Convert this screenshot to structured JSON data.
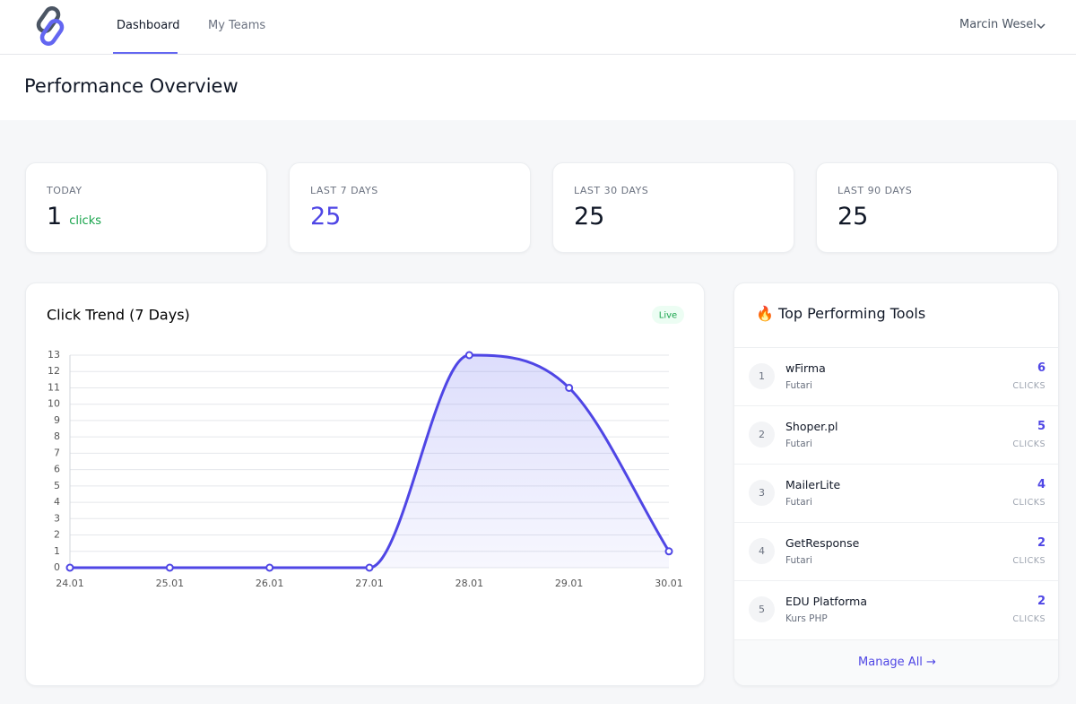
{
  "nav": {
    "items": [
      "Dashboard",
      "My Teams"
    ],
    "user": "Marcin Wesel"
  },
  "header": {
    "title": "Performance Overview"
  },
  "stats": [
    {
      "label": "TODAY",
      "value": "1",
      "unit": "clicks"
    },
    {
      "label": "LAST 7 DAYS",
      "value": "25"
    },
    {
      "label": "LAST 30 DAYS",
      "value": "25"
    },
    {
      "label": "LAST 90 DAYS",
      "value": "25"
    }
  ],
  "chart_data": {
    "type": "line",
    "title": "Click Trend (7 Days)",
    "badge": "Live",
    "categories": [
      "24.01",
      "25.01",
      "26.01",
      "27.01",
      "28.01",
      "29.01",
      "30.01"
    ],
    "series": [
      {
        "color": "#4f46e5",
        "values": [
          0,
          0,
          0,
          0,
          13,
          11,
          1
        ]
      }
    ],
    "ylim": [
      0,
      13
    ],
    "yticks": [
      0,
      1,
      2,
      3,
      4,
      5,
      6,
      7,
      8,
      9,
      10,
      11,
      12,
      13
    ],
    "grid": true
  },
  "tools": {
    "icon": "🔥",
    "title": "Top Performing Tools",
    "items": [
      {
        "rank": "1",
        "name": "wFirma",
        "sub": "Futari",
        "clicks": "6",
        "unit": "CLICKS"
      },
      {
        "rank": "2",
        "name": "Shoper.pl",
        "sub": "Futari",
        "clicks": "5",
        "unit": "CLICKS"
      },
      {
        "rank": "3",
        "name": "MailerLite",
        "sub": "Futari",
        "clicks": "4",
        "unit": "CLICKS"
      },
      {
        "rank": "4",
        "name": "GetResponse",
        "sub": "Futari",
        "clicks": "2",
        "unit": "CLICKS"
      },
      {
        "rank": "5",
        "name": "EDU Platforma",
        "sub": "Kurs PHP",
        "clicks": "2",
        "unit": "CLICKS"
      }
    ],
    "link": "Manage All →"
  }
}
